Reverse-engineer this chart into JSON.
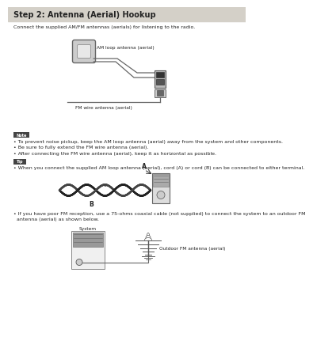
{
  "title": "Step 2: Antenna (Aerial) Hookup",
  "title_bg": "#d4d0c8",
  "title_fontsize": 7.0,
  "body_bg": "#ffffff",
  "intro_text": "Connect the supplied AM/FM antennas (aerials) for listening to the radio.",
  "note_label": "Note",
  "note_bg": "#444444",
  "note_text_color": "#ffffff",
  "tip_label": "Tip",
  "tip_bg": "#444444",
  "note_bullets": [
    "• To prevent noise pickup, keep the AM loop antenna (aerial) away from the system and other components.",
    "• Be sure to fully extend the FM wire antenna (aerial).",
    "• After connecting the FM wire antenna (aerial), keep it as horizontal as possible."
  ],
  "tip_bullets": [
    "• When you connect the supplied AM loop antenna (aerial), cord (A) or cord (B) can be connected to either terminal."
  ],
  "fm_bullet1": "• If you have poor FM reception, use a 75-ohms coaxial cable (not supplied) to connect the system to an outdoor FM",
  "fm_bullet2": "  antenna (aerial) as shown below.",
  "am_label": "AM loop antenna (aerial)",
  "fm_label": "FM wire antenna (aerial)",
  "system_label": "System",
  "outdoor_label": "Outdoor FM antenna (aerial)",
  "text_color": "#222222",
  "body_fontsize": 4.5,
  "label_fontsize": 4.2
}
